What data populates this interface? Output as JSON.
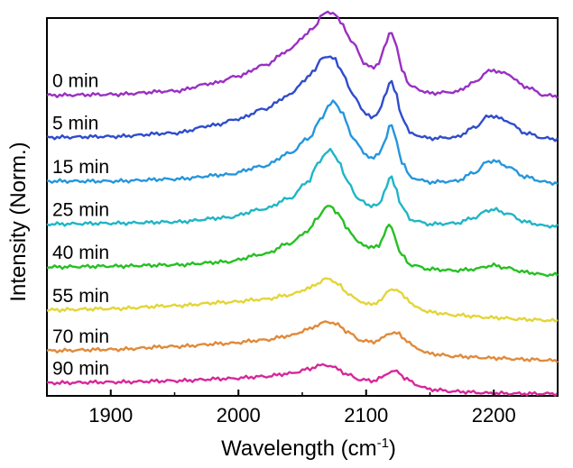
{
  "chart_data": {
    "type": "line",
    "title": "",
    "xlabel_main": "Wavelength (cm",
    "xlabel_sup": "-1",
    "xlabel_end": ")",
    "ylabel": "Intensity (Norm.)",
    "xlim": [
      1850,
      2250
    ],
    "ylim": [
      0,
      8.8
    ],
    "xticks": [
      1900,
      2000,
      2100,
      2200
    ],
    "xtick_labels": [
      "1900",
      "2000",
      "2100",
      "2200"
    ],
    "y_ticks_shown": false,
    "grid": false,
    "legend": "inline-left",
    "series": [
      {
        "name": "0 min",
        "color": "#9a2fc3",
        "offset": 7.0,
        "x": [
          1850,
          1900,
          1950,
          1980,
          2000,
          2020,
          2040,
          2050,
          2060,
          2065,
          2070,
          2075,
          2080,
          2090,
          2100,
          2105,
          2110,
          2115,
          2118,
          2120,
          2123,
          2128,
          2135,
          2150,
          2170,
          2185,
          2195,
          2200,
          2210,
          2225,
          2240,
          2250
        ],
        "y": [
          7.0,
          7.02,
          7.1,
          7.28,
          7.45,
          7.7,
          8.05,
          8.35,
          8.6,
          8.85,
          8.95,
          8.9,
          8.7,
          8.2,
          7.7,
          7.65,
          7.75,
          8.15,
          8.45,
          8.48,
          8.2,
          7.6,
          7.2,
          7.05,
          7.08,
          7.3,
          7.55,
          7.58,
          7.5,
          7.2,
          7.0,
          6.98
        ]
      },
      {
        "name": "5 min",
        "color": "#2f4ccc",
        "offset": 6.0,
        "x": [
          1850,
          1900,
          1950,
          1980,
          2000,
          2020,
          2040,
          2050,
          2060,
          2065,
          2070,
          2075,
          2080,
          2090,
          2100,
          2105,
          2110,
          2115,
          2118,
          2120,
          2123,
          2128,
          2135,
          2150,
          2170,
          2185,
          2195,
          2200,
          2210,
          2225,
          2240,
          2250
        ],
        "y": [
          6.02,
          6.04,
          6.12,
          6.3,
          6.45,
          6.68,
          7.0,
          7.3,
          7.6,
          7.85,
          7.92,
          7.85,
          7.6,
          7.0,
          6.55,
          6.5,
          6.6,
          7.0,
          7.3,
          7.32,
          7.05,
          6.5,
          6.1,
          6.0,
          6.02,
          6.25,
          6.5,
          6.52,
          6.4,
          6.12,
          6.0,
          5.98
        ]
      },
      {
        "name": "15 min",
        "color": "#2596dd",
        "offset": 5.0,
        "x": [
          1850,
          1900,
          1950,
          1990,
          2020,
          2040,
          2055,
          2065,
          2070,
          2075,
          2080,
          2090,
          2100,
          2105,
          2110,
          2115,
          2118,
          2120,
          2123,
          2128,
          2135,
          2150,
          2170,
          2185,
          2195,
          2200,
          2210,
          2225,
          2240,
          2250
        ],
        "y": [
          5.0,
          5.0,
          5.05,
          5.15,
          5.35,
          5.65,
          6.0,
          6.45,
          6.75,
          6.85,
          6.65,
          6.0,
          5.6,
          5.55,
          5.62,
          5.95,
          6.28,
          6.3,
          6.0,
          5.45,
          5.08,
          4.98,
          5.0,
          5.2,
          5.45,
          5.48,
          5.35,
          5.1,
          4.98,
          4.95
        ]
      },
      {
        "name": "25 min",
        "color": "#1fb5c7",
        "offset": 4.0,
        "x": [
          1850,
          1900,
          1950,
          1990,
          2020,
          2040,
          2055,
          2062,
          2068,
          2072,
          2078,
          2085,
          2095,
          2105,
          2110,
          2115,
          2118,
          2120,
          2123,
          2128,
          2135,
          2150,
          2170,
          2185,
          2195,
          2200,
          2210,
          2225,
          2240,
          2250
        ],
        "y": [
          4.0,
          4.02,
          4.05,
          4.15,
          4.35,
          4.6,
          5.0,
          5.4,
          5.65,
          5.72,
          5.5,
          5.0,
          4.55,
          4.42,
          4.45,
          4.8,
          5.05,
          5.08,
          4.85,
          4.4,
          4.1,
          4.0,
          4.02,
          4.15,
          4.32,
          4.34,
          4.25,
          4.05,
          3.96,
          3.95
        ]
      },
      {
        "name": "40 min",
        "color": "#26c023",
        "offset": 3.0,
        "x": [
          1850,
          1900,
          1950,
          1990,
          2020,
          2040,
          2055,
          2062,
          2068,
          2072,
          2078,
          2085,
          2095,
          2105,
          2110,
          2114,
          2117,
          2119,
          2122,
          2127,
          2135,
          2150,
          2170,
          2185,
          2195,
          2200,
          2210,
          2225,
          2240,
          2250
        ],
        "y": [
          3.0,
          3.02,
          3.05,
          3.12,
          3.3,
          3.55,
          3.85,
          4.15,
          4.38,
          4.42,
          4.25,
          3.9,
          3.55,
          3.45,
          3.5,
          3.75,
          3.95,
          3.98,
          3.75,
          3.3,
          3.05,
          2.95,
          2.92,
          2.95,
          3.02,
          3.04,
          2.98,
          2.88,
          2.82,
          2.82
        ]
      },
      {
        "name": "55 min",
        "color": "#e3d537",
        "offset": 2.0,
        "x": [
          1850,
          1900,
          1950,
          1990,
          2020,
          2040,
          2055,
          2062,
          2068,
          2072,
          2078,
          2085,
          2095,
          2105,
          2112,
          2118,
          2121,
          2125,
          2130,
          2140,
          2150,
          2170,
          2200,
          2225,
          2250
        ],
        "y": [
          2.0,
          2.03,
          2.1,
          2.18,
          2.25,
          2.35,
          2.5,
          2.62,
          2.72,
          2.72,
          2.6,
          2.4,
          2.2,
          2.12,
          2.25,
          2.45,
          2.5,
          2.45,
          2.3,
          2.05,
          1.95,
          1.88,
          1.82,
          1.78,
          1.75
        ]
      },
      {
        "name": "70 min",
        "color": "#e08a3a",
        "offset": 1.0,
        "x": [
          1850,
          1900,
          1950,
          1990,
          2020,
          2040,
          2055,
          2062,
          2068,
          2072,
          2078,
          2085,
          2095,
          2105,
          2112,
          2118,
          2121,
          2125,
          2130,
          2140,
          2150,
          2170,
          2200,
          2225,
          2250
        ],
        "y": [
          1.05,
          1.08,
          1.15,
          1.22,
          1.3,
          1.4,
          1.55,
          1.65,
          1.72,
          1.72,
          1.65,
          1.5,
          1.3,
          1.25,
          1.33,
          1.45,
          1.48,
          1.45,
          1.32,
          1.1,
          0.98,
          0.92,
          0.88,
          0.85,
          0.82
        ]
      },
      {
        "name": "90 min",
        "color": "#d7289a",
        "offset": 0.0,
        "x": [
          1850,
          1900,
          1950,
          1990,
          2020,
          2040,
          2055,
          2062,
          2068,
          2072,
          2078,
          2085,
          2095,
          2105,
          2112,
          2118,
          2121,
          2125,
          2130,
          2140,
          2150,
          2170,
          2200,
          2225,
          2250
        ],
        "y": [
          0.3,
          0.32,
          0.35,
          0.4,
          0.45,
          0.52,
          0.62,
          0.7,
          0.72,
          0.7,
          0.62,
          0.5,
          0.38,
          0.35,
          0.42,
          0.55,
          0.58,
          0.55,
          0.42,
          0.25,
          0.15,
          0.1,
          0.06,
          0.05,
          0.05
        ]
      }
    ]
  }
}
